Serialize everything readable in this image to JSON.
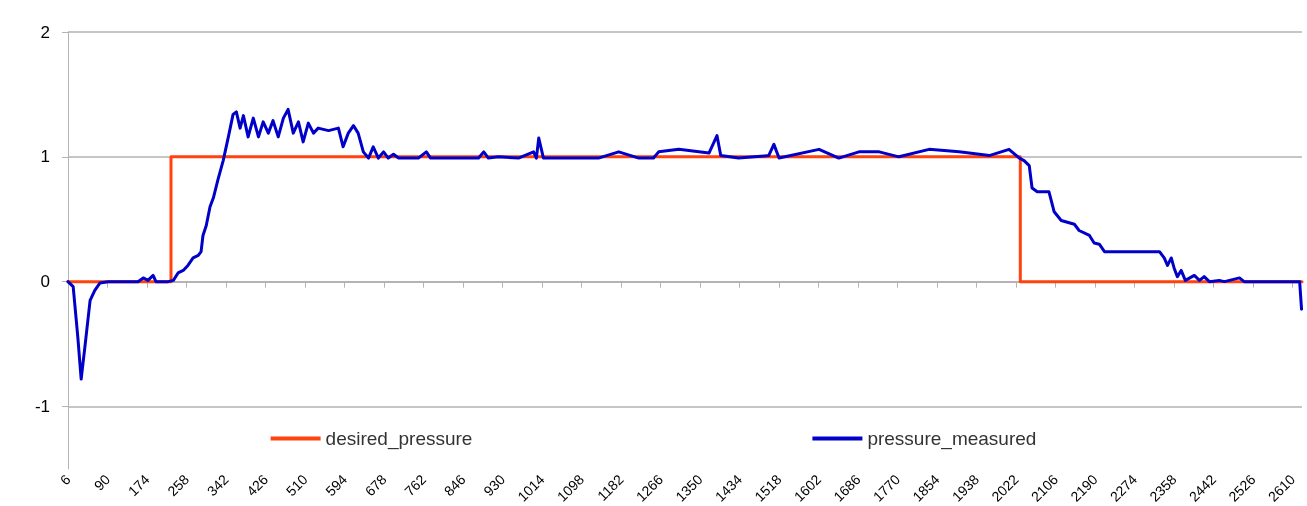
{
  "chart_data": {
    "type": "line",
    "xlim": [
      6,
      2630
    ],
    "ylim": [
      -1.5,
      2
    ],
    "xticks": [
      6,
      90,
      174,
      258,
      342,
      426,
      510,
      594,
      678,
      762,
      846,
      930,
      1014,
      1098,
      1182,
      1266,
      1350,
      1434,
      1518,
      1602,
      1686,
      1770,
      1854,
      1938,
      2022,
      2106,
      2190,
      2274,
      2358,
      2442,
      2526,
      2610
    ],
    "yticks": [
      -1,
      0,
      1,
      2
    ],
    "grid": "y",
    "legend": "bottom",
    "marker": "none",
    "line_style": "solid",
    "series": [
      {
        "name": "desired_pressure",
        "color": "#ff420e",
        "x": [
          6,
          225,
          225,
          2031,
          2031,
          2630
        ],
        "values": [
          0,
          0,
          1,
          1,
          0,
          0
        ]
      },
      {
        "name": "pressure_measured",
        "color": "#0000c8",
        "x": [
          6,
          17,
          27,
          34,
          42,
          53,
          63,
          74,
          91,
          155,
          166,
          176,
          187,
          193,
          219,
          230,
          240,
          251,
          261,
          272,
          283,
          289,
          293,
          300,
          308,
          315,
          325,
          336,
          347,
          357,
          364,
          372,
          379,
          389,
          400,
          411,
          421,
          432,
          442,
          453,
          464,
          474,
          485,
          496,
          506,
          517,
          528,
          538,
          560,
          581,
          591,
          602,
          613,
          623,
          634,
          645,
          655,
          666,
          677,
          687,
          698,
          709,
          751,
          768,
          777,
          836,
          879,
          890,
          900,
          921,
          964,
          996,
          1002,
          1007,
          1017,
          1049,
          1134,
          1177,
          1220,
          1251,
          1262,
          1305,
          1369,
          1386,
          1394,
          1432,
          1496,
          1507,
          1518,
          1603,
          1645,
          1688,
          1731,
          1773,
          1837,
          1901,
          1965,
          2007,
          2029,
          2039,
          2050,
          2056,
          2067,
          2092,
          2103,
          2118,
          2146,
          2156,
          2178,
          2188,
          2199,
          2210,
          2220,
          2327,
          2337,
          2344,
          2352,
          2358,
          2365,
          2373,
          2382,
          2401,
          2412,
          2422,
          2433,
          2454,
          2465,
          2497,
          2507,
          2625,
          2629
        ],
        "values": [
          0,
          -0.04,
          -0.45,
          -0.78,
          -0.52,
          -0.15,
          -0.07,
          -0.01,
          0,
          0,
          0.03,
          0.01,
          0.05,
          0,
          0,
          0.01,
          0.07,
          0.09,
          0.13,
          0.19,
          0.21,
          0.24,
          0.37,
          0.45,
          0.6,
          0.67,
          0.82,
          0.97,
          1.16,
          1.34,
          1.36,
          1.23,
          1.33,
          1.16,
          1.31,
          1.16,
          1.28,
          1.19,
          1.29,
          1.16,
          1.31,
          1.38,
          1.19,
          1.28,
          1.12,
          1.27,
          1.19,
          1.23,
          1.21,
          1.23,
          1.08,
          1.19,
          1.25,
          1.19,
          1.04,
          0.99,
          1.08,
          0.99,
          1.04,
          0.99,
          1.02,
          0.99,
          0.99,
          1.04,
          0.99,
          0.99,
          0.99,
          1.04,
          0.99,
          1.0,
          0.99,
          1.04,
          0.99,
          1.15,
          0.99,
          0.99,
          0.99,
          1.04,
          0.99,
          0.99,
          1.04,
          1.06,
          1.03,
          1.17,
          1.01,
          0.99,
          1.01,
          1.1,
          0.99,
          1.06,
          0.99,
          1.04,
          1.04,
          1.0,
          1.06,
          1.04,
          1.01,
          1.06,
          0.99,
          0.97,
          0.93,
          0.75,
          0.72,
          0.72,
          0.56,
          0.49,
          0.46,
          0.41,
          0.37,
          0.31,
          0.3,
          0.24,
          0.24,
          0.24,
          0.19,
          0.13,
          0.19,
          0.11,
          0.04,
          0.09,
          0.01,
          0.05,
          0.01,
          0.04,
          0,
          0.01,
          0,
          0.03,
          0,
          0,
          -0.22
        ]
      }
    ]
  }
}
